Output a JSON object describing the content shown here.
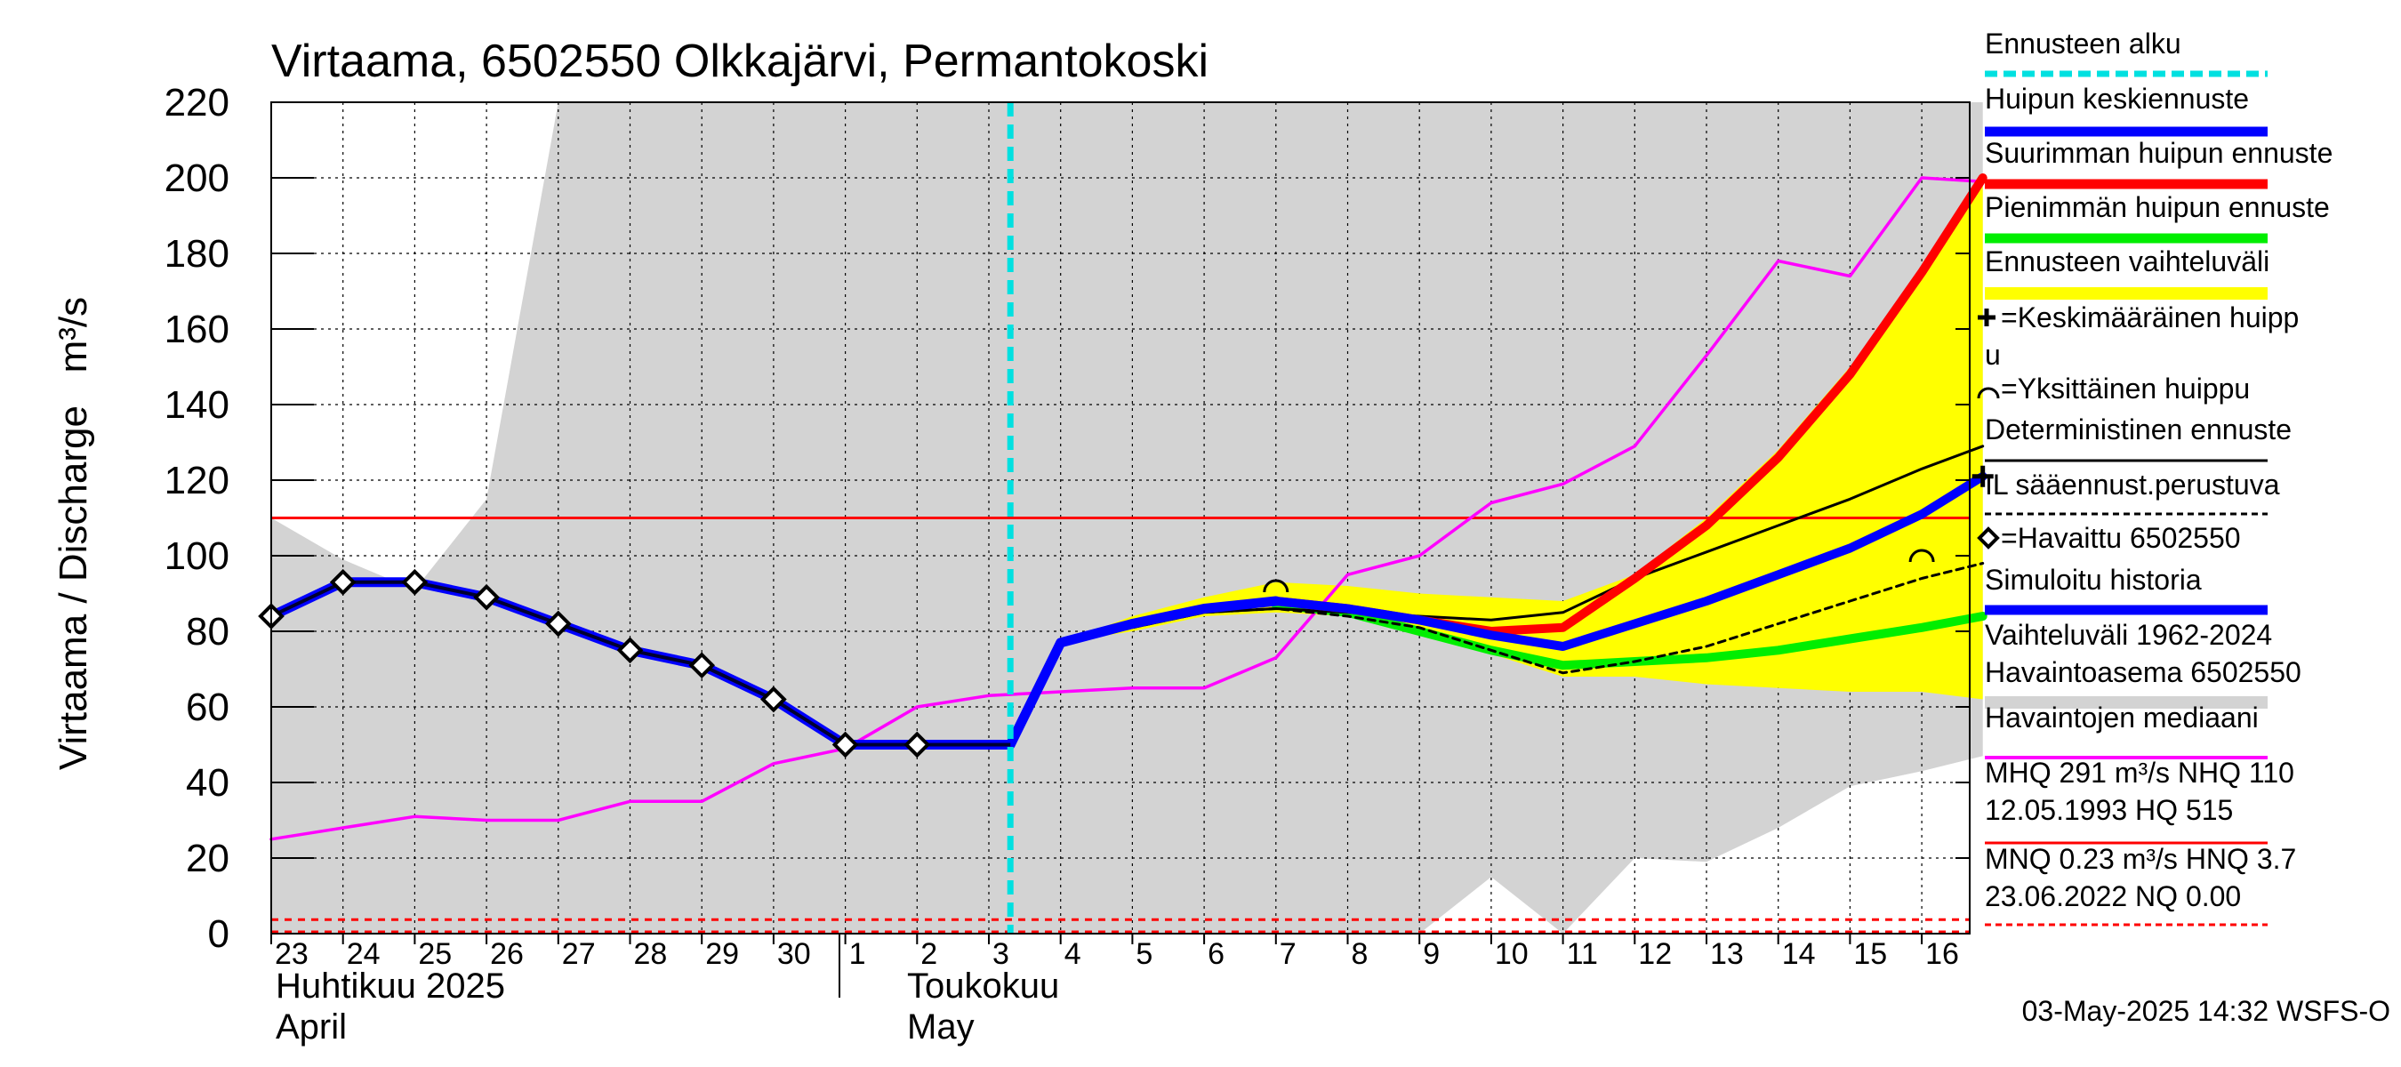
{
  "chart_data": {
    "type": "line",
    "title": "Virtaama, 6502550 Olkkajärvi, Permantokoski",
    "ylabel": "Virtaama / Discharge   m³/s",
    "ylim": [
      0,
      220
    ],
    "yticks": [
      0,
      20,
      40,
      60,
      80,
      100,
      120,
      140,
      160,
      180,
      200,
      220
    ],
    "x_days": [
      "23",
      "24",
      "25",
      "26",
      "27",
      "28",
      "29",
      "30",
      "1",
      "2",
      "3",
      "4",
      "5",
      "6",
      "7",
      "8",
      "9",
      "10",
      "11",
      "12",
      "13",
      "14",
      "15",
      "16"
    ],
    "month_labels": {
      "april_fi": "Huhtikuu  2025",
      "april_en": "April",
      "may_fi": "Toukokuu",
      "may_en": "May"
    },
    "forecast_start_index": 10.3,
    "reference_lines": {
      "nhq": 110,
      "nq": 0,
      "hnq": 3.7
    },
    "history_band": {
      "x": [
        0,
        1,
        2,
        3,
        4,
        5,
        6,
        7,
        8,
        9,
        10,
        11,
        12,
        13,
        14,
        15,
        16,
        17,
        18,
        19,
        20,
        21,
        22,
        23,
        23.85
      ],
      "upper": [
        110,
        99,
        91,
        115,
        220,
        220,
        220,
        220,
        220,
        220,
        220,
        220,
        220,
        220,
        220,
        220,
        220,
        220,
        220,
        220,
        220,
        220,
        220,
        220,
        220
      ],
      "lower": [
        0,
        0,
        0,
        0,
        0,
        0,
        0,
        0,
        0,
        0,
        0,
        0,
        0,
        0,
        0,
        0,
        0,
        15,
        0,
        20,
        19,
        28,
        39,
        43,
        47
      ]
    },
    "forecast_band": {
      "x": [
        11,
        12,
        13,
        14,
        15,
        16,
        17,
        18,
        19,
        20,
        21,
        22,
        23,
        23.85
      ],
      "upper": [
        77,
        84,
        89,
        93,
        92,
        90,
        89,
        88,
        95,
        110,
        128,
        150,
        176,
        200
      ],
      "lower": [
        77,
        80,
        84,
        85,
        84,
        80,
        74,
        68,
        68,
        66,
        65,
        64,
        64,
        62
      ]
    },
    "series": [
      {
        "name": "Havaitut (observed)",
        "x": [
          0,
          1,
          2,
          3,
          4,
          5,
          6,
          7,
          8,
          9,
          10.3
        ],
        "values": [
          84,
          93,
          93,
          89,
          82,
          75,
          71,
          62,
          50,
          50,
          50
        ]
      },
      {
        "name": "Simuloitu historia",
        "x": [
          0,
          1,
          2,
          3,
          4,
          5,
          6,
          7,
          8,
          9,
          10.3,
          11,
          12,
          13,
          14
        ],
        "values": [
          84,
          93,
          93,
          89,
          82,
          75,
          71,
          62,
          50,
          50,
          50,
          77,
          82,
          86,
          88
        ]
      },
      {
        "name": "Huipun keskiennuste",
        "x": [
          14,
          15,
          16,
          17,
          18,
          19,
          20,
          21,
          22,
          23,
          23.85
        ],
        "values": [
          88,
          86,
          83,
          79,
          76,
          82,
          88,
          95,
          102,
          111,
          121
        ]
      },
      {
        "name": "Suurimman huipun ennuste",
        "x": [
          14,
          15,
          16,
          17,
          18,
          19,
          20,
          21,
          22,
          23,
          23.85
        ],
        "values": [
          88,
          86,
          83,
          80,
          81,
          94,
          108,
          126,
          148,
          175,
          200
        ]
      },
      {
        "name": "Pienimmän huipun ennuste",
        "x": [
          14,
          15,
          16,
          17,
          18,
          19,
          20,
          21,
          22,
          23,
          23.85
        ],
        "values": [
          87,
          85,
          80,
          75,
          71,
          72,
          73,
          75,
          78,
          81,
          84
        ]
      },
      {
        "name": "Deterministinen ennuste",
        "x": [
          11,
          12,
          13,
          14,
          15,
          16,
          17,
          18,
          19,
          20,
          21,
          22,
          23,
          23.85
        ],
        "values": [
          77,
          81,
          85,
          86,
          85,
          84,
          83,
          85,
          94,
          101,
          108,
          115,
          123,
          129
        ]
      },
      {
        "name": "IL sääennust.perustuva",
        "x": [
          11,
          12,
          13,
          14,
          15,
          16,
          17,
          18,
          19,
          20,
          21,
          22,
          23,
          23.85
        ],
        "values": [
          77,
          81,
          85,
          86,
          84,
          81,
          75,
          69,
          72,
          76,
          82,
          88,
          94,
          98
        ]
      },
      {
        "name": "Havaintojen mediaani",
        "x": [
          0,
          1,
          2,
          3,
          4,
          5,
          6,
          7,
          8,
          9,
          10,
          11,
          12,
          13,
          14,
          15,
          16,
          17,
          18,
          19,
          20,
          21,
          22,
          23,
          23.85
        ],
        "values": [
          25,
          28,
          31,
          30,
          30,
          35,
          35,
          45,
          49,
          60,
          63,
          64,
          65,
          65,
          73,
          95,
          100,
          114,
          119,
          129,
          153,
          178,
          174,
          200,
          199
        ]
      }
    ],
    "markers": {
      "mean_peak": {
        "x": 23.85,
        "y": 121
      },
      "single_peaks": [
        {
          "x": 14,
          "y": 92
        },
        {
          "x": 23,
          "y": 100
        }
      ]
    },
    "legend_position": "right",
    "legend": [
      {
        "label": "Ennusteen alku",
        "color": "#00e0e0",
        "style": "dashed"
      },
      {
        "label": "Huipun keskiennuste",
        "color": "#0000ff",
        "style": "solid"
      },
      {
        "label": "Suurimman huipun ennuste",
        "color": "#ff0000",
        "style": "solid"
      },
      {
        "label": "Pienimmän huipun ennuste",
        "color": "#00ee00",
        "style": "solid"
      },
      {
        "label": "Ennusteen vaihteluväli",
        "color": "#ffff00",
        "style": "solid"
      },
      {
        "label": "=Keskimääräinen huipp",
        "label2": "u",
        "color": "#000000",
        "style": "plus"
      },
      {
        "label": "=Yksittäinen huippu",
        "color": "#000000",
        "style": "arc"
      },
      {
        "label": "Deterministinen ennuste",
        "color": "#000000",
        "style": "solid"
      },
      {
        "label": "IL sääennust.perustuva",
        "color": "#000000",
        "style": "dotted"
      },
      {
        "label": "=Havaittu 6502550",
        "color": "#000000",
        "style": "diamond"
      },
      {
        "label": "Simuloitu historia",
        "color": "#0000ff",
        "style": "solid"
      },
      {
        "label": "Vaihteluväli 1962-2024",
        "label2": " Havaintoasema 6502550",
        "color": "#d3d3d3",
        "style": "solid"
      },
      {
        "label": "Havaintojen mediaani",
        "color": "#ff00ff",
        "style": "solid"
      },
      {
        "label": "MHQ  291 m³/s NHQ  110",
        "label2": "12.05.1993 HQ  515",
        "color": "#ff0000",
        "style": "solid"
      },
      {
        "label": "MNQ 0.23 m³/s HNQ  3.7",
        "label2": "23.06.2022 NQ 0.00",
        "color": "#ff0000",
        "style": "dotted"
      }
    ],
    "timestamp": "03-May-2025 14:32 WSFS-O"
  },
  "colors": {
    "history_band": "#d3d3d3",
    "forecast_band": "#ffff00",
    "observed": "#0000ff",
    "median": "#ff00ff",
    "max_forecast": "#ff0000",
    "min_forecast": "#00ee00",
    "forecast_start": "#00e0e0",
    "reference": "#ff0000"
  }
}
